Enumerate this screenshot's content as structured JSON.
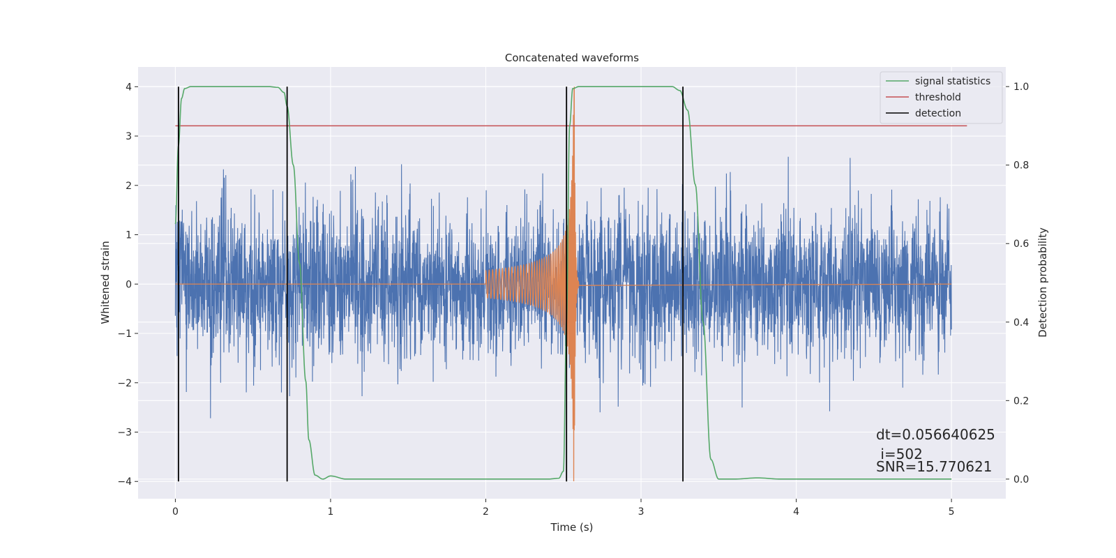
{
  "chart_data": {
    "type": "line",
    "title": "Concatenated waveforms",
    "xlabel": "Time (s)",
    "ylabel": "Whitened strain",
    "ylabel_right": "Detection probability",
    "xlim": [
      -0.24,
      5.35
    ],
    "ylim": [
      -4.35,
      4.4
    ],
    "ylim_right": [
      -0.05,
      1.05
    ],
    "xticks": [
      0,
      1,
      2,
      3,
      4,
      5
    ],
    "yticks": [
      -4,
      -3,
      -2,
      -1,
      0,
      1,
      2,
      3,
      4
    ],
    "yticks_right": [
      0.0,
      0.2,
      0.4,
      0.6,
      0.8,
      1.0
    ],
    "xtick_labels": [
      "0",
      "1",
      "2",
      "3",
      "4",
      "5"
    ],
    "ytick_labels": [
      "−4",
      "−3",
      "−2",
      "−1",
      "0",
      "1",
      "2",
      "3",
      "4"
    ],
    "ytick_right_labels": [
      "0.0",
      "0.2",
      "0.4",
      "0.6",
      "0.8",
      "1.0"
    ],
    "grid": true,
    "legend_position": "top-right",
    "style": {
      "background": "#eaeaf2",
      "grid_color": "#ffffff",
      "noise_color": "#4c72b0",
      "chirp_color": "#dd8452",
      "signal_color": "#55a868",
      "threshold_color": "#c44e52",
      "detection_color": "#000000"
    },
    "series": [
      {
        "name": "strain",
        "kind": "noise",
        "x_range": [
          0,
          5
        ],
        "amplitude_rms": 0.75,
        "peak_range": [
          -3.4,
          3.8
        ]
      },
      {
        "name": "waveform",
        "kind": "chirp",
        "x_range": [
          2.0,
          2.6
        ],
        "peak_time": 2.57,
        "peak_amplitude": 4.0
      },
      {
        "name": "signal statistics",
        "axis": "right",
        "x": [
          0,
          0.02,
          0.04,
          0.06,
          0.1,
          0.2,
          0.4,
          0.6,
          0.66,
          0.7,
          0.72,
          0.76,
          0.8,
          0.84,
          0.86,
          0.9,
          0.95,
          1.0,
          1.1,
          1.5,
          2.0,
          2.4,
          2.47,
          2.5,
          2.52,
          2.54,
          2.56,
          2.6,
          2.8,
          3.2,
          3.25,
          3.3,
          3.35,
          3.4,
          3.45,
          3.5,
          3.6,
          3.75,
          3.9,
          4.5,
          5.0
        ],
        "y": [
          0.65,
          0.85,
          0.97,
          0.995,
          1.0,
          1.0,
          1.0,
          1.0,
          0.998,
          0.985,
          0.95,
          0.8,
          0.55,
          0.25,
          0.1,
          0.01,
          0.0,
          0.008,
          0.0,
          0.0,
          0.0,
          0.0,
          0.002,
          0.02,
          0.4,
          0.9,
          0.995,
          1.0,
          1.0,
          1.0,
          0.99,
          0.94,
          0.75,
          0.4,
          0.05,
          0.0,
          0.0,
          0.003,
          0.0,
          0.0,
          0.0
        ]
      },
      {
        "name": "threshold",
        "axis": "right",
        "x": [
          0,
          5.1
        ],
        "y": [
          0.9,
          0.9
        ]
      },
      {
        "name": "detection",
        "x": [
          0.02,
          0.72,
          2.52,
          3.27
        ],
        "ymin": -4,
        "ymax": 4
      }
    ],
    "legend": [
      "signal statistics",
      "threshold",
      "detection"
    ],
    "annotations": [
      "dt=0.056640625",
      " i=502",
      "SNR=15.770621"
    ]
  }
}
